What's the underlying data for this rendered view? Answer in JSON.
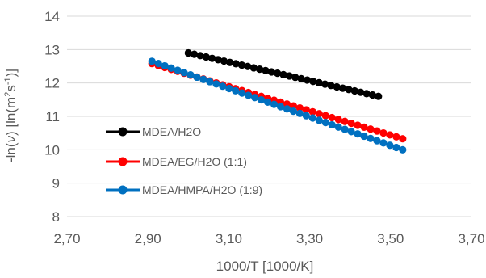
{
  "chart_data": {
    "type": "line",
    "title": "",
    "xlabel": "1000/T [1000/K]",
    "ylabel_parts": [
      "-ln(",
      "ν",
      ") [ln(m",
      "2",
      "s",
      "-1",
      ")]"
    ],
    "xlim": [
      2.7,
      3.7
    ],
    "ylim": [
      8,
      14
    ],
    "x_ticks": [
      "2,70",
      "2,90",
      "3,10",
      "3,30",
      "3,50",
      "3,70"
    ],
    "y_ticks": [
      "8",
      "9",
      "10",
      "11",
      "12",
      "13",
      "14"
    ],
    "grid": "horizontal",
    "legend_placement": "inside-left",
    "series": [
      {
        "name": "MDEA/H2O",
        "color": "#000000",
        "x_start": 3.0,
        "x_end": 3.47,
        "y_start": 12.9,
        "y_end": 11.6,
        "n_points": 33
      },
      {
        "name": "MDEA/EG/H2O (1:1)",
        "color": "#ff0000",
        "x_start": 2.91,
        "x_end": 3.53,
        "y_start": 12.58,
        "y_end": 10.33,
        "n_points": 40
      },
      {
        "name": "MDEA/HMPA/H2O (1:9)",
        "color": "#0070c0",
        "x_start": 2.91,
        "x_end": 3.53,
        "y_start": 12.65,
        "y_end": 10.0,
        "n_points": 40
      }
    ]
  }
}
